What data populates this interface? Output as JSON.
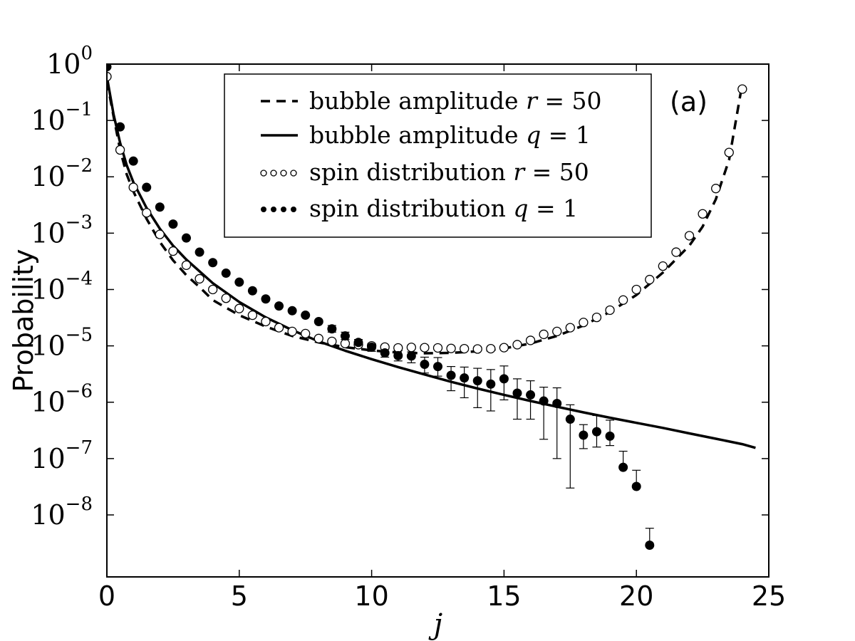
{
  "chart_data": {
    "type": "scatter",
    "title": "",
    "annotation": "(a)",
    "xlabel": "j",
    "ylabel": "Probability",
    "xlim": [
      0,
      25
    ],
    "ylim_log10": [
      -9.1,
      0
    ],
    "yscale": "log",
    "xticks": [
      "0",
      "5",
      "10",
      "15",
      "20",
      "25"
    ],
    "yticks": [
      {
        "base": "10",
        "exp": "0",
        "log10": 0
      },
      {
        "base": "10",
        "exp": "−1",
        "log10": -1
      },
      {
        "base": "10",
        "exp": "−2",
        "log10": -2
      },
      {
        "base": "10",
        "exp": "−3",
        "log10": -3
      },
      {
        "base": "10",
        "exp": "−4",
        "log10": -4
      },
      {
        "base": "10",
        "exp": "−5",
        "log10": -5
      },
      {
        "base": "10",
        "exp": "−6",
        "log10": -6
      },
      {
        "base": "10",
        "exp": "−7",
        "log10": -7
      },
      {
        "base": "10",
        "exp": "−8",
        "log10": -8
      }
    ],
    "legend_position": "top-center",
    "legend": [
      {
        "text": "bubble amplitude ",
        "math": "r",
        "rest": " = 50",
        "style": "dashed"
      },
      {
        "text": "bubble amplitude ",
        "math": "q",
        "rest": " = 1",
        "style": "solid"
      },
      {
        "text": "spin distribution ",
        "math": "r",
        "rest": " = 50",
        "style": "open-markers"
      },
      {
        "text": "spin distribution ",
        "math": "q",
        "rest": " = 1",
        "style": "filled-markers"
      }
    ],
    "series": [
      {
        "name": "bubble amplitude r = 50",
        "style": "dashed",
        "x": [
          0,
          0.25,
          0.5,
          0.75,
          1,
          1.5,
          2,
          2.5,
          3,
          3.5,
          4,
          5,
          6,
          7,
          8,
          9,
          10,
          11,
          12,
          13,
          14,
          15,
          16,
          17,
          18,
          19,
          20,
          21,
          22,
          22.5,
          23,
          23.5,
          24
        ],
        "y": [
          0.5,
          0.12,
          0.03,
          0.011,
          0.0055,
          0.0018,
          0.0007,
          0.00033,
          0.00018,
          0.00011,
          6.5e-05,
          3.5e-05,
          2.2e-05,
          1.5e-05,
          1.15e-05,
          9.5e-06,
          8.3e-06,
          7.6e-06,
          7.4e-06,
          7.5e-06,
          8e-06,
          9e-06,
          1.1e-05,
          1.5e-05,
          2.3e-05,
          4e-05,
          8e-05,
          0.0002,
          0.0006,
          0.0013,
          0.004,
          0.02,
          0.45
        ]
      },
      {
        "name": "bubble amplitude q = 1",
        "style": "solid",
        "x": [
          0,
          0.25,
          0.5,
          0.75,
          1,
          1.5,
          2,
          2.5,
          3,
          4,
          5,
          6,
          7,
          8,
          9,
          10,
          11,
          12,
          13,
          14,
          15,
          16,
          17,
          18,
          19,
          20,
          21,
          22,
          23,
          24,
          24.5
        ],
        "y": [
          0.6,
          0.13,
          0.04,
          0.016,
          0.008,
          0.0028,
          0.0012,
          0.0006,
          0.00034,
          0.00013,
          6e-05,
          3.2e-05,
          1.9e-05,
          1.2e-05,
          8.2e-06,
          5.8e-06,
          4.2e-06,
          3.1e-06,
          2.3e-06,
          1.75e-06,
          1.35e-06,
          1.05e-06,
          8.3e-07,
          6.6e-07,
          5.3e-07,
          4.3e-07,
          3.5e-07,
          2.8e-07,
          2.25e-07,
          1.8e-07,
          1.55e-07
        ]
      },
      {
        "name": "spin distribution r = 50",
        "style": "open-markers",
        "x": [
          0,
          0.5,
          1,
          1.5,
          2,
          2.5,
          3,
          3.5,
          4,
          4.5,
          5,
          5.5,
          6,
          6.5,
          7,
          7.5,
          8,
          8.5,
          9,
          9.5,
          10,
          10.5,
          11,
          11.5,
          12,
          12.5,
          13,
          13.5,
          14,
          14.5,
          15,
          15.5,
          16,
          16.5,
          17,
          17.5,
          18,
          18.5,
          19,
          19.5,
          20,
          20.5,
          21,
          21.5,
          22,
          22.5,
          23,
          23.5,
          24
        ],
        "y": [
          0.6,
          0.03,
          0.0065,
          0.0023,
          0.00095,
          0.00048,
          0.00027,
          0.000155,
          0.0001,
          7e-05,
          4.6e-05,
          3.5e-05,
          2.7e-05,
          2.1e-05,
          1.8e-05,
          1.65e-05,
          1.35e-05,
          1.2e-05,
          1.1e-05,
          1.05e-05,
          1e-05,
          9.5e-06,
          9.2e-06,
          9.4e-06,
          9.3e-06,
          9.2e-06,
          9e-06,
          8.9e-06,
          8.8e-06,
          8.9e-06,
          9.3e-06,
          1.05e-05,
          1.25e-05,
          1.6e-05,
          1.8e-05,
          2.1e-05,
          2.6e-05,
          3.2e-05,
          4.3e-05,
          6.5e-05,
          0.0001,
          0.00015,
          0.00026,
          0.00046,
          0.0009,
          0.0022,
          0.0062,
          0.027,
          0.36
        ]
      },
      {
        "name": "spin distribution q = 1",
        "style": "filled-markers",
        "x": [
          0,
          0.5,
          1,
          1.5,
          2,
          2.5,
          3,
          3.5,
          4,
          4.5,
          5,
          5.5,
          6,
          6.5,
          7,
          7.5,
          8,
          8.5,
          9,
          9.5,
          10,
          10.5,
          11,
          11.5,
          12,
          12.5,
          13,
          13.5,
          14,
          14.5,
          15,
          15.5,
          16,
          16.5,
          17,
          17.5,
          18,
          18.5,
          19,
          19.5,
          20,
          20.5
        ],
        "y": [
          0.9,
          0.077,
          0.019,
          0.0065,
          0.0029,
          0.00145,
          0.00082,
          0.00046,
          0.0003,
          0.000195,
          0.000135,
          9.5e-05,
          6.8e-05,
          5.1e-05,
          4.2e-05,
          3.5e-05,
          2.7e-05,
          2e-05,
          1.5e-05,
          1.15e-05,
          9.5e-06,
          7.5e-06,
          6.7e-06,
          6.6e-06,
          4.7e-06,
          4.3e-06,
          3e-06,
          2.7e-06,
          2.4e-06,
          2.1e-06,
          2.6e-06,
          1.45e-06,
          1.35e-06,
          1.05e-06,
          9.5e-07,
          5e-07,
          2.6e-07,
          3e-07,
          2.5e-07,
          7e-08,
          3.2e-08,
          2.9e-09
        ],
        "error_upper": [
          null,
          null,
          null,
          null,
          null,
          null,
          null,
          null,
          null,
          null,
          null,
          null,
          null,
          null,
          null,
          null,
          null,
          2.3e-05,
          1.75e-05,
          1.3e-05,
          1.1e-05,
          8.8e-06,
          8.2e-06,
          7.8e-06,
          6.3e-06,
          6.2e-06,
          4.3e-06,
          4.2e-06,
          4e-06,
          3.8e-06,
          4.4e-06,
          2.6e-06,
          2.4e-06,
          1.85e-06,
          1.8e-06,
          9e-07,
          4e-07,
          5.8e-07,
          4.8e-07,
          1.35e-07,
          6.2e-08,
          5.8e-09
        ],
        "error_lower": [
          null,
          null,
          null,
          null,
          null,
          null,
          null,
          null,
          null,
          null,
          null,
          null,
          null,
          null,
          null,
          null,
          null,
          1.75e-05,
          1.3e-05,
          1e-05,
          8e-06,
          6.3e-06,
          5.4e-06,
          5e-06,
          3.3e-06,
          2.9e-06,
          1.6e-06,
          1.2e-06,
          8e-07,
          7e-07,
          1.1e-06,
          5e-07,
          5e-07,
          2.2e-07,
          1e-07,
          3e-08,
          1.5e-07,
          1.6e-07,
          1.7e-07,
          null,
          null,
          null
        ]
      }
    ]
  }
}
